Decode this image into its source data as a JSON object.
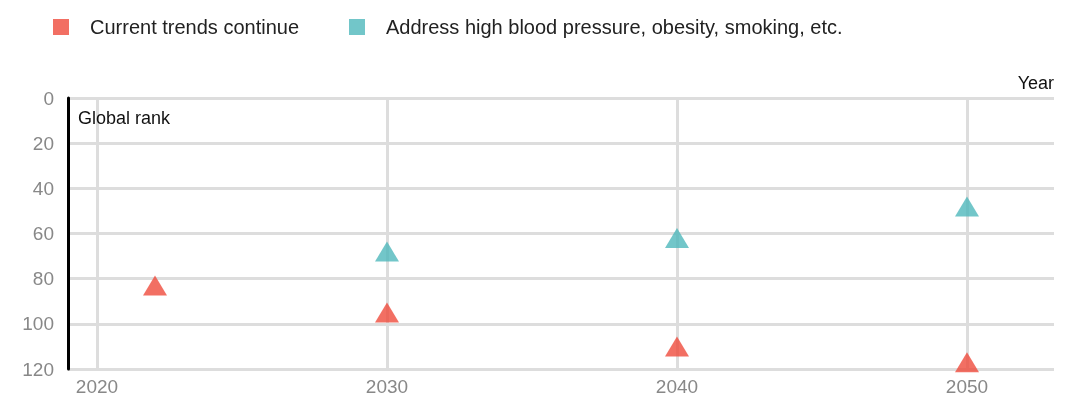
{
  "chart_data": {
    "type": "scatter",
    "xlabel": "Year",
    "ylabel": "Global rank",
    "series": [
      {
        "name": "Current trends continue",
        "color": "#ef4b3c",
        "x": [
          2022,
          2030,
          2040,
          2050
        ],
        "values": [
          83,
          95,
          110,
          117
        ]
      },
      {
        "name": "Address high blood pressure, obesity, smoking, etc.",
        "color": "#4fb8bc",
        "x": [
          2030,
          2040,
          2050
        ],
        "values": [
          68,
          62,
          48
        ]
      }
    ],
    "xlim": [
      2019,
      2053
    ],
    "xticks": [
      2020,
      2030,
      2040,
      2050
    ],
    "ylim": [
      120,
      0
    ],
    "yticks": [
      0,
      20,
      40,
      60,
      80,
      100,
      120
    ],
    "grid": true,
    "legend": "top left",
    "marker": "triangle"
  }
}
